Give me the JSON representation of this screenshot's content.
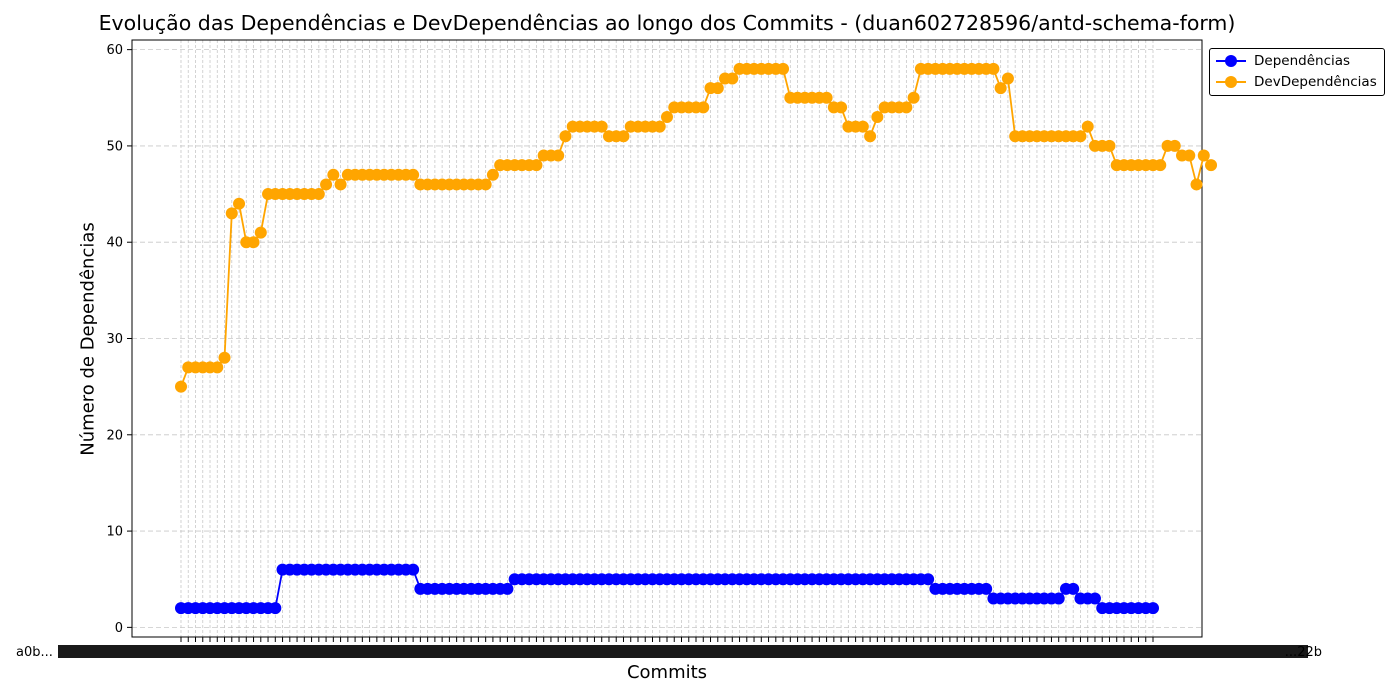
{
  "chart_data": {
    "type": "line",
    "title": "Evolução das Dependências e DevDependências ao longo dos Commits - (duan602728596/antd-schema-form)",
    "xlabel": "Commits",
    "ylabel": "Número de Dependências",
    "ylim": [
      -1,
      61
    ],
    "yticks": [
      0,
      10,
      20,
      30,
      40,
      50,
      60
    ],
    "x_tick_label_first": "a0b...",
    "x_tick_label_last": "...22b",
    "grid": true,
    "legend_position": "outside-top-right",
    "series": [
      {
        "name": "Dependências",
        "color": "#0000ff",
        "values": [
          2,
          2,
          2,
          2,
          2,
          2,
          2,
          2,
          2,
          2,
          2,
          2,
          2,
          2,
          6,
          6,
          6,
          6,
          6,
          6,
          6,
          6,
          6,
          6,
          6,
          6,
          6,
          6,
          6,
          6,
          6,
          6,
          6,
          4,
          4,
          4,
          4,
          4,
          4,
          4,
          4,
          4,
          4,
          4,
          4,
          4,
          5,
          5,
          5,
          5,
          5,
          5,
          5,
          5,
          5,
          5,
          5,
          5,
          5,
          5,
          5,
          5,
          5,
          5,
          5,
          5,
          5,
          5,
          5,
          5,
          5,
          5,
          5,
          5,
          5,
          5,
          5,
          5,
          5,
          5,
          5,
          5,
          5,
          5,
          5,
          5,
          5,
          5,
          5,
          5,
          5,
          5,
          5,
          5,
          5,
          5,
          5,
          5,
          5,
          5,
          5,
          5,
          5,
          5,
          4,
          4,
          4,
          4,
          4,
          4,
          4,
          4,
          3,
          3,
          3,
          3,
          3,
          3,
          3,
          3,
          3,
          3,
          4,
          4,
          3,
          3,
          3,
          2,
          2,
          2,
          2,
          2,
          2,
          2,
          2
        ]
      },
      {
        "name": "DevDependências",
        "color": "#ffa500",
        "values": [
          25,
          27,
          27,
          27,
          27,
          27,
          28,
          43,
          44,
          40,
          40,
          41,
          45,
          45,
          45,
          45,
          45,
          45,
          45,
          45,
          46,
          47,
          46,
          47,
          47,
          47,
          47,
          47,
          47,
          47,
          47,
          47,
          47,
          46,
          46,
          46,
          46,
          46,
          46,
          46,
          46,
          46,
          46,
          47,
          48,
          48,
          48,
          48,
          48,
          48,
          49,
          49,
          49,
          51,
          52,
          52,
          52,
          52,
          52,
          51,
          51,
          51,
          52,
          52,
          52,
          52,
          52,
          53,
          54,
          54,
          54,
          54,
          54,
          56,
          56,
          57,
          57,
          58,
          58,
          58,
          58,
          58,
          58,
          58,
          55,
          55,
          55,
          55,
          55,
          55,
          54,
          54,
          52,
          52,
          52,
          51,
          53,
          54,
          54,
          54,
          54,
          55,
          58,
          58,
          58,
          58,
          58,
          58,
          58,
          58,
          58,
          58,
          58,
          56,
          57,
          51,
          51,
          51,
          51,
          51,
          51,
          51,
          51,
          51,
          51,
          52,
          50,
          50,
          50,
          48,
          48,
          48,
          48,
          48,
          48,
          48,
          50,
          50,
          49,
          49,
          46,
          49,
          48
        ]
      }
    ]
  }
}
